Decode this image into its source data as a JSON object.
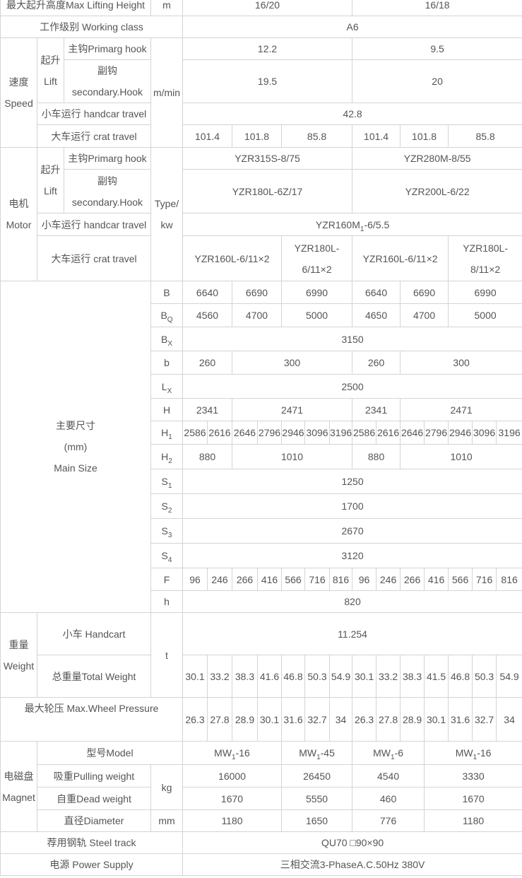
{
  "max_lifting_height": {
    "label": "最大起升高度Max Lifting Height",
    "unit": "m",
    "values": [
      "16/20",
      "16/18"
    ]
  },
  "working_class": {
    "label": "工作级别 Working class",
    "value": "A6"
  },
  "speed": {
    "label_cn": "速度",
    "label_en": "Speed",
    "lift_cn": "起升",
    "lift_en": "Lift",
    "unit": "m/min",
    "primary_hook": {
      "label": "主钩Primarg hook",
      "values": [
        "12.2",
        "9.5"
      ]
    },
    "secondary_hook": {
      "label_cn": "副钩",
      "label_en": "secondary.Hook",
      "values": [
        "19.5",
        "20"
      ]
    },
    "handcar_travel": {
      "label": "小车运行 handcar travel",
      "value": "42.8"
    },
    "crat_travel": {
      "label": "大车运行 crat travel",
      "values": [
        "101.4",
        "101.8",
        "85.8",
        "101.4",
        "101.8",
        "85.8"
      ]
    }
  },
  "motor": {
    "label_cn": "电机",
    "label_en": "Motor",
    "lift_cn": "起升",
    "lift_en": "Lift",
    "unit_line1": "Type/",
    "unit_line2": "kw",
    "primary_hook": {
      "label": "主钩Primarg hook",
      "values": [
        "YZR315S-8/75",
        "YZR280M-8/55"
      ]
    },
    "secondary_hook": {
      "label_cn": "副钩",
      "label_en": "secondary.Hook",
      "values": [
        "YZR180L-6Z/17",
        "YZR200L-6/22"
      ]
    },
    "handcar_travel": {
      "label": "小车运行 handcar travel",
      "value": {
        "main": "YZR160M",
        "sub": "1",
        "post": "-6/5.5"
      }
    },
    "crat_travel": {
      "label": "大车运行 crat travel",
      "values": [
        "YZR160L-6/11×2",
        "YZR180L-6/11×2",
        "YZR160L-6/11×2",
        "YZR180L-8/11×2"
      ]
    }
  },
  "main_size": {
    "label_cn": "主要尺寸",
    "unit": "(mm)",
    "label_en": "Main Size",
    "rows": [
      {
        "main": "B",
        "sub": "",
        "values": [
          "6640",
          "6690",
          "6990",
          "6640",
          "6690",
          "6990"
        ]
      },
      {
        "main": "B",
        "sub": "Q",
        "values": [
          "4560",
          "4700",
          "5000",
          "4650",
          "4700",
          "5000"
        ]
      },
      {
        "main": "B",
        "sub": "X",
        "values": [
          "3150"
        ]
      },
      {
        "main": "b",
        "sub": "",
        "values": [
          "260",
          "300",
          "260",
          "300"
        ]
      },
      {
        "main": "L",
        "sub": "X",
        "values": [
          "2500"
        ]
      },
      {
        "main": "H",
        "sub": "",
        "values": [
          "2341",
          "2471",
          "2341",
          "2471"
        ]
      },
      {
        "main": "H",
        "sub": "1",
        "values": [
          "2586",
          "2616",
          "2646",
          "2796",
          "2946",
          "3096",
          "3196",
          "2586",
          "2616",
          "2646",
          "2796",
          "2946",
          "3096",
          "3196"
        ]
      },
      {
        "main": "H",
        "sub": "2",
        "values": [
          "880",
          "1010",
          "880",
          "1010"
        ]
      },
      {
        "main": "S",
        "sub": "1",
        "values": [
          "1250"
        ]
      },
      {
        "main": "S",
        "sub": "2",
        "values": [
          "1700"
        ]
      },
      {
        "main": "S",
        "sub": "3",
        "values": [
          "2670"
        ]
      },
      {
        "main": "S",
        "sub": "4",
        "values": [
          "3120"
        ]
      },
      {
        "main": "F",
        "sub": "",
        "values": [
          "96",
          "246",
          "266",
          "416",
          "566",
          "716",
          "816",
          "96",
          "246",
          "266",
          "416",
          "566",
          "716",
          "816"
        ]
      },
      {
        "main": "h",
        "sub": "",
        "values": [
          "820"
        ]
      }
    ]
  },
  "weight": {
    "label_cn": "重量",
    "label_en": "Weight",
    "unit": "t",
    "handcart": {
      "label": "小车 Handcart",
      "value": "11.254"
    },
    "total": {
      "label": "总重量Total Weight",
      "values": [
        "30.1",
        "33.2",
        "38.3",
        "41.6",
        "46.8",
        "50.3",
        "54.9",
        "30.1",
        "33.2",
        "38.3",
        "41.5",
        "46.8",
        "50.3",
        "54.9"
      ]
    }
  },
  "wheel_pressure": {
    "label": "最大轮压 Max.Wheel Pressure",
    "values": [
      "26.3",
      "27.8",
      "28.9",
      "30.1",
      "31.6",
      "32.7",
      "34",
      "26.3",
      "27.8",
      "28.9",
      "30.1",
      "31.6",
      "32.7",
      "34"
    ]
  },
  "magnet": {
    "label_cn": "电磁盘",
    "label_en": "Magnet",
    "model": {
      "label": "型号Model",
      "values": [
        {
          "main": "MW",
          "sub": "1",
          "post": "-16"
        },
        {
          "main": "MW",
          "sub": "1",
          "post": "-45"
        },
        {
          "main": "MW",
          "sub": "1",
          "post": "-6"
        },
        {
          "main": "MW",
          "sub": "1",
          "post": "-16"
        }
      ]
    },
    "weight_unit": "kg",
    "pulling_weight": {
      "label": "吸重Pulling weight",
      "values": [
        "16000",
        "26450",
        "4540",
        "3330"
      ]
    },
    "dead_weight": {
      "label": "自重Dead weight",
      "values": [
        "1670",
        "5550",
        "460",
        "1670"
      ]
    },
    "diameter": {
      "label": "直径Diameter",
      "unit": "mm",
      "values": [
        "1180",
        "1650",
        "776",
        "1180"
      ]
    }
  },
  "steel_track": {
    "label": "荐用钢轨 Steel track",
    "value": "QU70 □90×90"
  },
  "power_supply": {
    "label": "电源 Power Supply",
    "value": "三相交流3-PhaseA.C.50Hz 380V"
  }
}
